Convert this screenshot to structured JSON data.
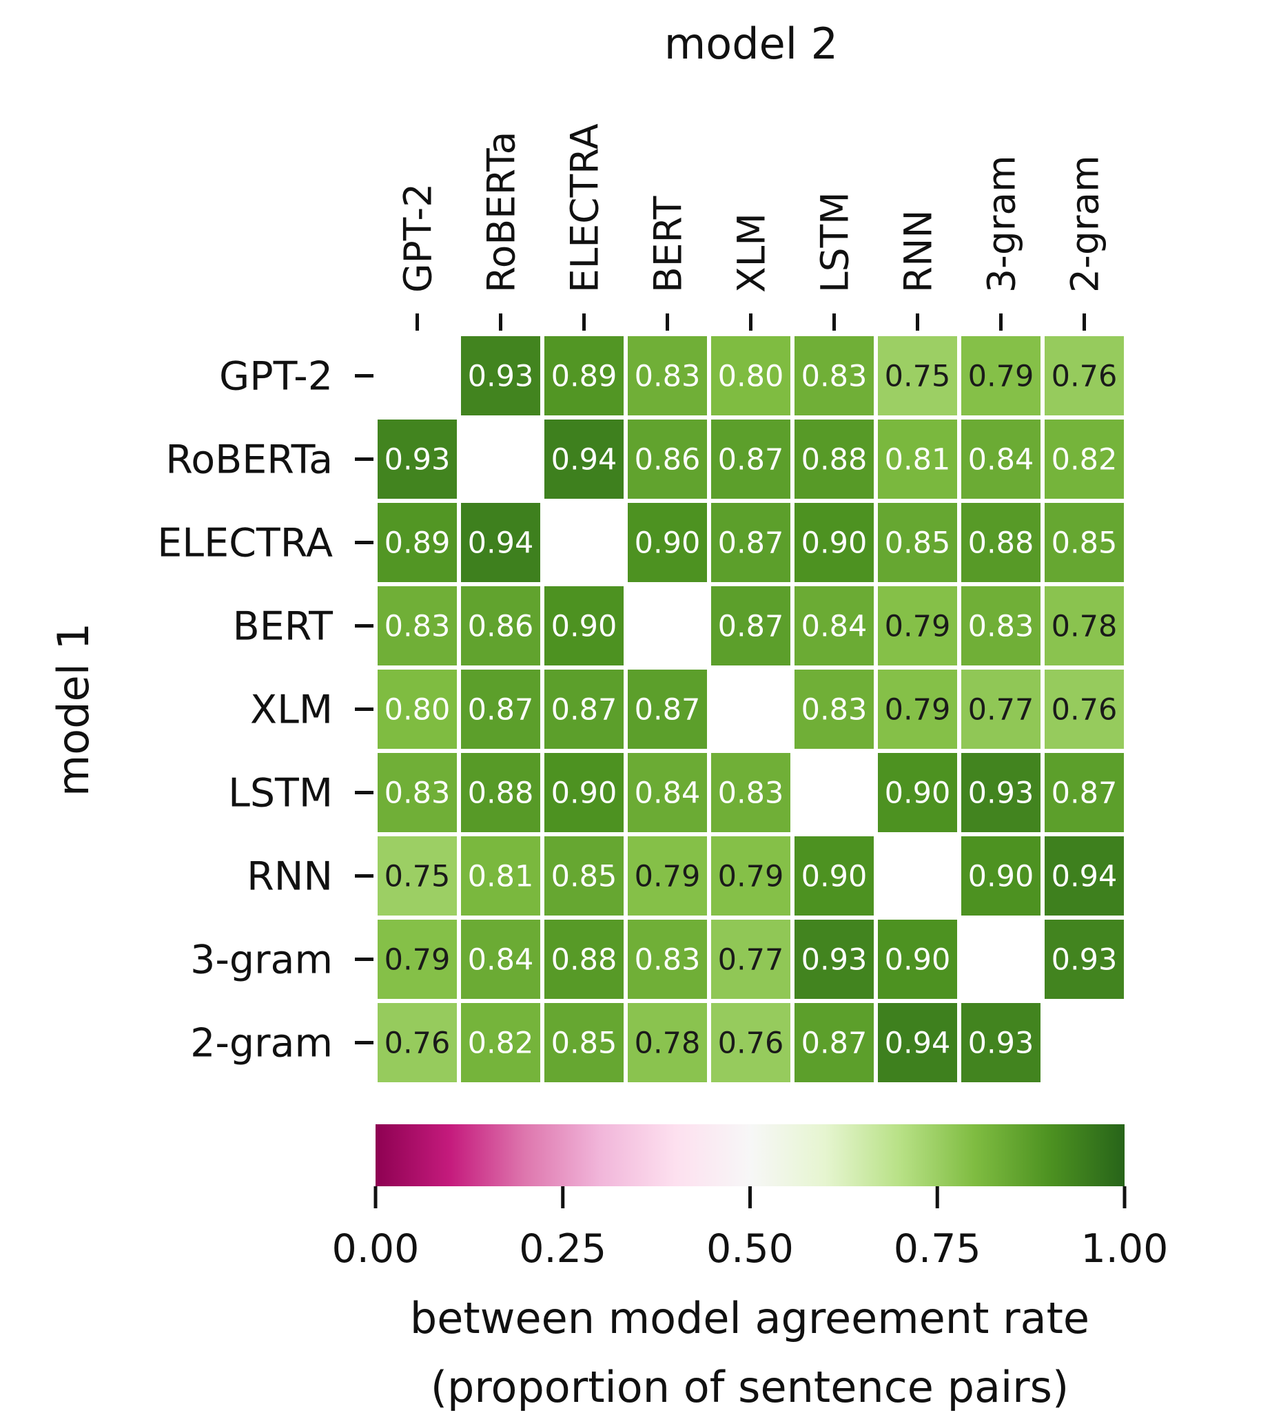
{
  "chart_data": {
    "type": "heatmap",
    "title": "model 2",
    "xlabel": "model 2",
    "ylabel": "model 1",
    "x_categories": [
      "GPT-2",
      "RoBERTa",
      "ELECTRA",
      "BERT",
      "XLM",
      "LSTM",
      "RNN",
      "3-gram",
      "2-gram"
    ],
    "y_categories": [
      "GPT-2",
      "RoBERTa",
      "ELECTRA",
      "BERT",
      "XLM",
      "LSTM",
      "RNN",
      "3-gram",
      "2-gram"
    ],
    "values": [
      [
        null,
        0.93,
        0.89,
        0.83,
        0.8,
        0.83,
        0.75,
        0.79,
        0.76
      ],
      [
        0.93,
        null,
        0.94,
        0.86,
        0.87,
        0.88,
        0.81,
        0.84,
        0.82
      ],
      [
        0.89,
        0.94,
        null,
        0.9,
        0.87,
        0.9,
        0.85,
        0.88,
        0.85
      ],
      [
        0.83,
        0.86,
        0.9,
        null,
        0.87,
        0.84,
        0.79,
        0.83,
        0.78
      ],
      [
        0.8,
        0.87,
        0.87,
        0.87,
        null,
        0.83,
        0.79,
        0.77,
        0.76
      ],
      [
        0.83,
        0.88,
        0.9,
        0.84,
        0.83,
        null,
        0.9,
        0.93,
        0.87
      ],
      [
        0.75,
        0.81,
        0.85,
        0.79,
        0.79,
        0.9,
        null,
        0.9,
        0.94
      ],
      [
        0.79,
        0.84,
        0.88,
        0.83,
        0.77,
        0.93,
        0.9,
        null,
        0.93
      ],
      [
        0.76,
        0.82,
        0.85,
        0.78,
        0.76,
        0.87,
        0.94,
        0.93,
        null
      ]
    ],
    "value_format": "2 decimals",
    "colorbar": {
      "label_line1": "between model agreement rate",
      "label_line2": "(proportion of sentence pairs)",
      "range": [
        0.0,
        1.0
      ],
      "ticks": [
        "0.00",
        "0.25",
        "0.50",
        "0.75",
        "1.00"
      ],
      "tick_values": [
        0.0,
        0.25,
        0.5,
        0.75,
        1.0
      ],
      "colormap": "PiYG",
      "orientation": "horizontal"
    },
    "colors": {
      "cmap_stops": [
        "#8e0152",
        "#c51b7d",
        "#de77ae",
        "#f1b6da",
        "#fde0ef",
        "#f7f7f7",
        "#e6f5d0",
        "#b8e186",
        "#7fbc41",
        "#4d9221",
        "#276419"
      ],
      "dark_text": "#1a1a1a",
      "light_text": "#ffffff",
      "cell_border": "#ffffff"
    }
  }
}
